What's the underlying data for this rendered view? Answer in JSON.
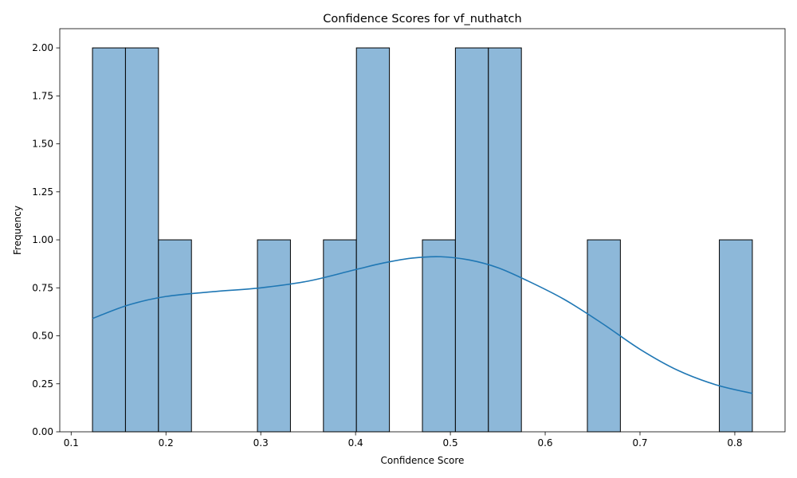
{
  "chart_data": {
    "type": "bar",
    "title": "Confidence Scores for vf_nuthatch",
    "xlabel": "Confidence Score",
    "ylabel": "Frequency",
    "xlim": [
      0.088,
      0.853
    ],
    "ylim": [
      0,
      2.1
    ],
    "xticks": [
      0.1,
      0.2,
      0.3,
      0.4,
      0.5,
      0.6,
      0.7,
      0.8
    ],
    "xtick_labels": [
      "0.1",
      "0.2",
      "0.3",
      "0.4",
      "0.5",
      "0.6",
      "0.7",
      "0.8"
    ],
    "yticks": [
      0,
      0.25,
      0.5,
      0.75,
      1.0,
      1.25,
      1.5,
      1.75,
      2.0
    ],
    "ytick_labels": [
      "0.00",
      "0.25",
      "0.50",
      "0.75",
      "1.00",
      "1.25",
      "1.50",
      "1.75",
      "2.00"
    ],
    "bin_edges": [
      0.1225,
      0.1573,
      0.1921,
      0.2269,
      0.2617,
      0.2965,
      0.3313,
      0.3661,
      0.4009,
      0.4357,
      0.4705,
      0.5053,
      0.5401,
      0.5749,
      0.6097,
      0.6445,
      0.6793,
      0.7141,
      0.7489,
      0.7837,
      0.8185
    ],
    "counts": [
      2,
      2,
      1,
      0,
      0,
      1,
      0,
      1,
      2,
      0,
      1,
      2,
      2,
      0,
      0,
      1,
      0,
      0,
      0,
      1
    ],
    "kde": {
      "x": [
        0.1225,
        0.16,
        0.2,
        0.25,
        0.3,
        0.35,
        0.4,
        0.43,
        0.46,
        0.49,
        0.52,
        0.55,
        0.58,
        0.62,
        0.66,
        0.7,
        0.74,
        0.78,
        0.8185
      ],
      "y": [
        0.59,
        0.66,
        0.705,
        0.73,
        0.75,
        0.785,
        0.845,
        0.88,
        0.905,
        0.912,
        0.895,
        0.855,
        0.79,
        0.69,
        0.565,
        0.43,
        0.32,
        0.245,
        0.2
      ]
    },
    "colors": {
      "bar_fill": "#8db8d9",
      "bar_edge": "#000000",
      "kde_line": "#1f77b4"
    },
    "grid": false
  }
}
